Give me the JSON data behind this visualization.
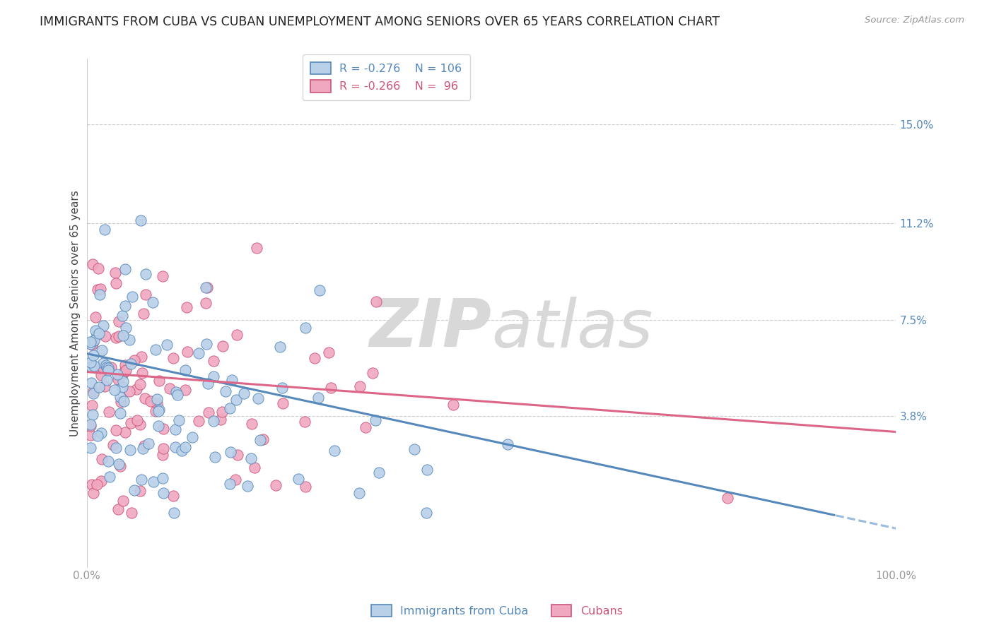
{
  "title": "IMMIGRANTS FROM CUBA VS CUBAN UNEMPLOYMENT AMONG SENIORS OVER 65 YEARS CORRELATION CHART",
  "source": "Source: ZipAtlas.com",
  "ylabel": "Unemployment Among Seniors over 65 years",
  "ytick_labels": [
    "3.8%",
    "7.5%",
    "11.2%",
    "15.0%"
  ],
  "ytick_values": [
    3.8,
    7.5,
    11.2,
    15.0
  ],
  "xlim": [
    0,
    100
  ],
  "ylim": [
    -2.0,
    17.5
  ],
  "legend_blue_R": "R = -0.276",
  "legend_blue_N": "N = 106",
  "legend_pink_R": "R = -0.266",
  "legend_pink_N": "N =  96",
  "color_blue": "#b8d0e8",
  "color_pink": "#f0a8c0",
  "edge_blue": "#5588bb",
  "edge_pink": "#cc5577",
  "line_blue": "#5588bb",
  "line_pink": "#dd6688",
  "line_blue_dash_color": "#99bbdd",
  "watermark_color": "#d8d8d8",
  "background_color": "#ffffff",
  "grid_color": "#cccccc",
  "tick_color": "#999999",
  "title_color": "#222222",
  "source_color": "#999999",
  "ylabel_color": "#444444",
  "right_ytick_color": "#5588bb",
  "blue_x_start": 6.0,
  "blue_x_end": 100.0,
  "blue_y_at_start": 5.8,
  "blue_y_at_end": -0.5,
  "pink_x_start": 0.0,
  "pink_x_end": 100.0,
  "pink_y_at_start": 5.5,
  "pink_y_at_end": 3.2
}
